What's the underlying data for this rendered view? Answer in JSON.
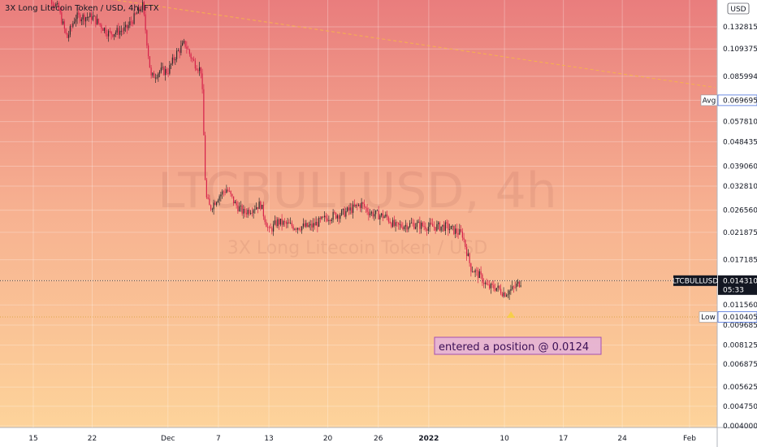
{
  "header": {
    "title": "3X Long Litecoin Token / USD, 4h, FTX",
    "currency": "USD"
  },
  "watermark": {
    "line1": "LTCBULLUSD, 4h",
    "line2": "3X Long Litecoin Token / USD"
  },
  "annotation": {
    "text": "entered a position @ 0.0124"
  },
  "markers": {
    "avg": {
      "label": "Avg",
      "value": "0.069695"
    },
    "low": {
      "label": "Low",
      "value": "0.010405"
    },
    "last": {
      "label": "LTCBULLUSD",
      "value": "0.014310",
      "countdown": "05:33"
    }
  },
  "colors": {
    "up": "#2b2b2b",
    "down": "#d6214a",
    "bg_top": "#e97d7d",
    "bg_bottom": "#fdd39a",
    "avg_line": "#f5b14d",
    "note_bg": "#e3b1da",
    "note_border": "#a44fb0"
  },
  "chart_data": {
    "type": "candlestick",
    "y_scale": "log",
    "ylim": [
      0.004,
      0.165
    ],
    "y_ticks": [
      "0.132815",
      "0.109375",
      "0.085994",
      "0.069695",
      "0.057810",
      "0.048435",
      "0.039060",
      "0.032810",
      "0.026560",
      "0.021875",
      "0.017185",
      "0.014310",
      "0.011560",
      "0.009685",
      "0.008125",
      "0.006875",
      "0.005625",
      "0.004750",
      "0.004000"
    ],
    "x_ticks": [
      {
        "label": "15",
        "date": "2021-11-15"
      },
      {
        "label": "22",
        "date": "2021-11-22"
      },
      {
        "label": "Dec",
        "date": "2021-12-01"
      },
      {
        "label": "7",
        "date": "2021-12-07"
      },
      {
        "label": "13",
        "date": "2021-12-13"
      },
      {
        "label": "20",
        "date": "2021-12-20"
      },
      {
        "label": "26",
        "date": "2021-12-26"
      },
      {
        "label": "2022",
        "date": "2022-01-01"
      },
      {
        "label": "10",
        "date": "2022-01-10"
      },
      {
        "label": "17",
        "date": "2022-01-17"
      },
      {
        "label": "24",
        "date": "2022-01-24"
      },
      {
        "label": "Feb",
        "date": "2022-02-01"
      }
    ],
    "avg_price_line": {
      "from": [
        "2021-11-21",
        0.175
      ],
      "to": [
        "2022-02-04",
        0.078
      ]
    },
    "close_path": [
      [
        "2021-11-16",
        0.19
      ],
      [
        "2021-11-18",
        0.155
      ],
      [
        "2021-11-19",
        0.12
      ],
      [
        "2021-11-20",
        0.145
      ],
      [
        "2021-11-22",
        0.145
      ],
      [
        "2021-11-24",
        0.125
      ],
      [
        "2021-11-26",
        0.13
      ],
      [
        "2021-11-28",
        0.16
      ],
      [
        "2021-11-29",
        0.085
      ],
      [
        "2021-11-30",
        0.09
      ],
      [
        "2021-12-01",
        0.09
      ],
      [
        "2021-12-02",
        0.105
      ],
      [
        "2021-12-03",
        0.115
      ],
      [
        "2021-12-04",
        0.098
      ],
      [
        "2021-12-05",
        0.09
      ],
      [
        "2021-12-05T12",
        0.03
      ],
      [
        "2021-12-06",
        0.027
      ],
      [
        "2021-12-07",
        0.03
      ],
      [
        "2021-12-08",
        0.032
      ],
      [
        "2021-12-09",
        0.028
      ],
      [
        "2021-12-10",
        0.026
      ],
      [
        "2021-12-12",
        0.028
      ],
      [
        "2021-12-13",
        0.022
      ],
      [
        "2021-12-14",
        0.024
      ],
      [
        "2021-12-16",
        0.023
      ],
      [
        "2021-12-18",
        0.023
      ],
      [
        "2021-12-20",
        0.025
      ],
      [
        "2021-12-22",
        0.026
      ],
      [
        "2021-12-24",
        0.028
      ],
      [
        "2021-12-25",
        0.026
      ],
      [
        "2021-12-27",
        0.025
      ],
      [
        "2021-12-28",
        0.023
      ],
      [
        "2021-12-30",
        0.0235
      ],
      [
        "2022-01-01",
        0.023
      ],
      [
        "2022-01-03",
        0.023
      ],
      [
        "2022-01-05",
        0.0215
      ],
      [
        "2022-01-06",
        0.016
      ],
      [
        "2022-01-07",
        0.015
      ],
      [
        "2022-01-08",
        0.0135
      ],
      [
        "2022-01-09",
        0.0135
      ],
      [
        "2022-01-10",
        0.0128
      ],
      [
        "2022-01-11",
        0.0133
      ],
      [
        "2022-01-12",
        0.0143
      ]
    ]
  }
}
